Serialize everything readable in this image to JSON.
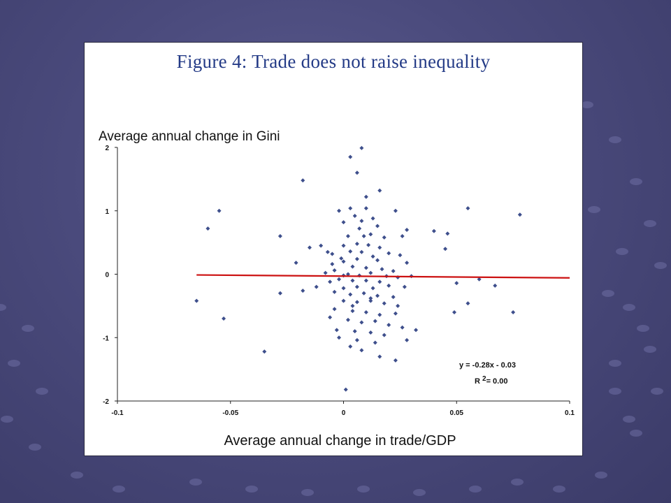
{
  "slide": {
    "background_color": "#4a4a7c",
    "dot_color": "#6e6ea3"
  },
  "figure": {
    "title": "Figure 4:  Trade does not raise inequality",
    "title_color": "#233a86"
  },
  "chart_data": {
    "type": "scatter",
    "title": "Figure 4:  Trade does not raise inequality",
    "xlabel": "Average annual change in trade/GDP",
    "ylabel": "Average annual change in Gini",
    "xlim": [
      -0.1,
      0.1
    ],
    "ylim": [
      -2,
      2
    ],
    "xticks": [
      -0.1,
      -0.05,
      0,
      0.05,
      0.1
    ],
    "xtick_labels": [
      "-0.1",
      "-0.05",
      "0",
      "0.05",
      "0.1"
    ],
    "yticks": [
      -2,
      -1,
      0,
      1,
      2
    ],
    "ytick_labels": [
      "-2",
      "-1",
      "0",
      "1",
      "2"
    ],
    "grid": false,
    "marker_color": "#3e4f8c",
    "trendline": {
      "slope": -0.28,
      "intercept": -0.03,
      "x_range": [
        -0.065,
        0.1
      ],
      "color": "#cc1111",
      "equation": "y = -0.28x - 0.03",
      "r2_prefix": "R",
      "r2_exponent": "2",
      "r2_value": "= 0.00"
    },
    "series": [
      {
        "points": [
          [
            0.008,
            1.99
          ],
          [
            0.003,
            1.85
          ],
          [
            0.006,
            1.6
          ],
          [
            -0.018,
            1.48
          ],
          [
            0.016,
            1.32
          ],
          [
            0.01,
            1.22
          ],
          [
            -0.055,
            1.0
          ],
          [
            0.055,
            1.04
          ],
          [
            0.078,
            0.94
          ],
          [
            -0.06,
            0.72
          ],
          [
            -0.028,
            0.6
          ],
          [
            -0.002,
            1.0
          ],
          [
            0.003,
            1.04
          ],
          [
            0.01,
            1.04
          ],
          [
            0.005,
            0.92
          ],
          [
            0.013,
            0.88
          ],
          [
            0.023,
            1.0
          ],
          [
            0.0,
            0.82
          ],
          [
            0.008,
            0.84
          ],
          [
            0.015,
            0.76
          ],
          [
            0.028,
            0.7
          ],
          [
            0.04,
            0.68
          ],
          [
            0.046,
            0.64
          ],
          [
            0.007,
            0.72
          ],
          [
            0.012,
            0.63
          ],
          [
            0.002,
            0.6
          ],
          [
            0.018,
            0.58
          ],
          [
            0.026,
            0.6
          ],
          [
            0.045,
            0.4
          ],
          [
            0.0,
            0.45
          ],
          [
            0.006,
            0.48
          ],
          [
            0.011,
            0.46
          ],
          [
            0.016,
            0.42
          ],
          [
            -0.015,
            0.42
          ],
          [
            -0.01,
            0.45
          ],
          [
            0.003,
            0.36
          ],
          [
            0.008,
            0.35
          ],
          [
            0.02,
            0.33
          ],
          [
            0.025,
            0.3
          ],
          [
            -0.005,
            0.32
          ],
          [
            0.013,
            0.28
          ],
          [
            0.006,
            0.24
          ],
          [
            0.0,
            0.2
          ],
          [
            0.015,
            0.22
          ],
          [
            -0.005,
            0.16
          ],
          [
            0.028,
            0.18
          ],
          [
            -0.021,
            0.18
          ],
          [
            0.004,
            0.12
          ],
          [
            0.01,
            0.1
          ],
          [
            0.017,
            0.08
          ],
          [
            0.022,
            0.05
          ],
          [
            -0.004,
            0.06
          ],
          [
            -0.008,
            0.02
          ],
          [
            0.002,
            0.0
          ],
          [
            0.007,
            -0.02
          ],
          [
            0.012,
            0.02
          ],
          [
            0.019,
            -0.03
          ],
          [
            0.024,
            -0.05
          ],
          [
            0.03,
            -0.03
          ],
          [
            -0.002,
            -0.08
          ],
          [
            0.004,
            -0.1
          ],
          [
            0.01,
            -0.1
          ],
          [
            0.016,
            -0.12
          ],
          [
            -0.006,
            -0.12
          ],
          [
            -0.012,
            -0.2
          ],
          [
            0.0,
            -0.22
          ],
          [
            0.006,
            -0.2
          ],
          [
            0.013,
            -0.22
          ],
          [
            0.02,
            -0.18
          ],
          [
            0.027,
            -0.2
          ],
          [
            -0.004,
            -0.28
          ],
          [
            0.003,
            -0.32
          ],
          [
            0.009,
            -0.3
          ],
          [
            0.015,
            -0.34
          ],
          [
            0.022,
            -0.36
          ],
          [
            -0.028,
            -0.3
          ],
          [
            -0.018,
            -0.26
          ],
          [
            0.0,
            -0.42
          ],
          [
            0.006,
            -0.44
          ],
          [
            0.012,
            -0.42
          ],
          [
            0.018,
            -0.46
          ],
          [
            0.024,
            -0.5
          ],
          [
            0.05,
            -0.14
          ],
          [
            0.055,
            -0.46
          ],
          [
            0.06,
            -0.08
          ],
          [
            0.067,
            -0.18
          ],
          [
            0.075,
            -0.6
          ],
          [
            0.049,
            -0.6
          ],
          [
            -0.065,
            -0.42
          ],
          [
            -0.053,
            -0.7
          ],
          [
            -0.035,
            -1.22
          ],
          [
            -0.004,
            -0.55
          ],
          [
            0.004,
            -0.58
          ],
          [
            0.01,
            -0.6
          ],
          [
            0.016,
            -0.64
          ],
          [
            0.023,
            -0.62
          ],
          [
            -0.006,
            -0.68
          ],
          [
            0.002,
            -0.72
          ],
          [
            0.008,
            -0.76
          ],
          [
            0.014,
            -0.74
          ],
          [
            0.02,
            -0.8
          ],
          [
            0.026,
            -0.84
          ],
          [
            -0.003,
            -0.88
          ],
          [
            0.005,
            -0.9
          ],
          [
            0.012,
            -0.92
          ],
          [
            0.018,
            -0.96
          ],
          [
            0.032,
            -0.88
          ],
          [
            -0.002,
            -1.0
          ],
          [
            0.006,
            -1.04
          ],
          [
            0.014,
            -1.08
          ],
          [
            0.028,
            -1.04
          ],
          [
            0.003,
            -1.14
          ],
          [
            0.008,
            -1.2
          ],
          [
            0.016,
            -1.3
          ],
          [
            0.023,
            -1.36
          ],
          [
            0.001,
            -1.82
          ],
          [
            -0.007,
            0.35
          ],
          [
            0.0,
            -0.02
          ],
          [
            -0.001,
            0.25
          ],
          [
            0.012,
            -0.38
          ],
          [
            0.004,
            -0.5
          ],
          [
            0.009,
            0.6
          ]
        ]
      }
    ]
  }
}
